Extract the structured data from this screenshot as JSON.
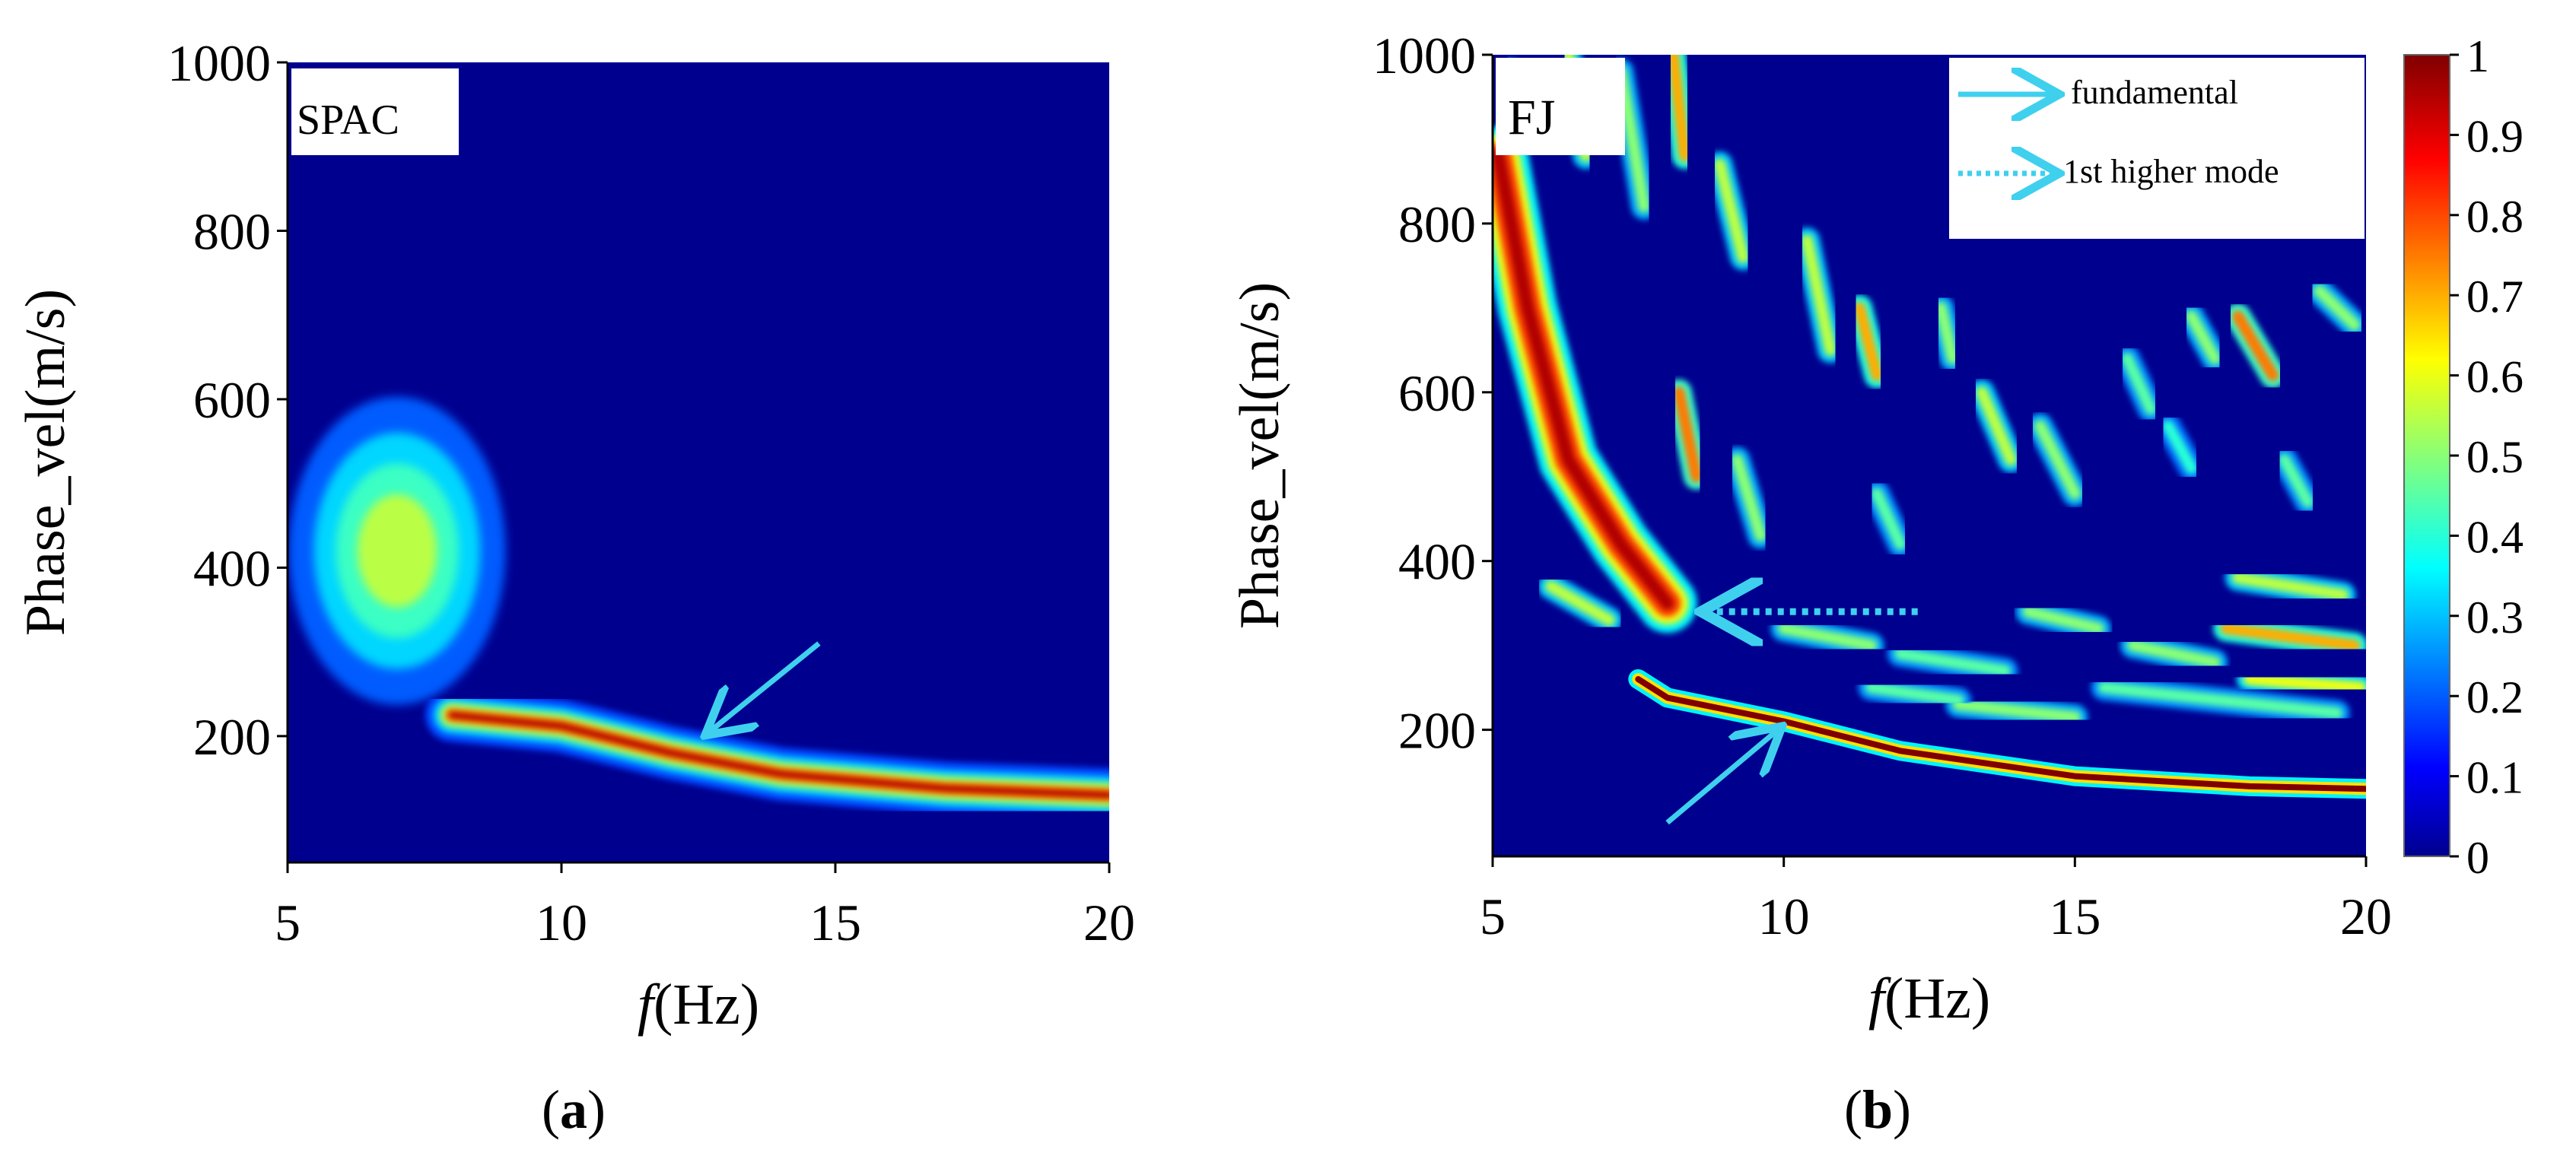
{
  "chart_data": [
    {
      "type": "heatmap",
      "panel_label": "a",
      "method_label": "SPAC",
      "xlabel_italic": "f",
      "xlabel_rest": "(Hz)",
      "ylabel": "Phase_vel(m/s)",
      "xlim": [
        5,
        20
      ],
      "ylim": [
        50,
        1000
      ],
      "x_ticks": [
        5,
        10,
        15,
        20
      ],
      "y_ticks": [
        200,
        400,
        600,
        800,
        1000
      ],
      "colormap": "jet",
      "energy_features": [
        {
          "name": "blob",
          "freq": 7.0,
          "vel": 420,
          "peak": 0.55
        },
        {
          "name": "fundamental_ridge",
          "points": [
            [
              8,
              225
            ],
            [
              10,
              212
            ],
            [
              12,
              180
            ],
            [
              14,
              155
            ],
            [
              17,
              138
            ],
            [
              20,
              130
            ]
          ],
          "peak": 0.95
        },
        {
          "name": "arrow",
          "from": [
            14.7,
            310
          ],
          "to": [
            12.7,
            205
          ],
          "color": "#3fd0ee"
        }
      ]
    },
    {
      "type": "heatmap",
      "panel_label": "b",
      "method_label": "FJ",
      "xlabel_italic": "f",
      "xlabel_rest": "(Hz)",
      "ylabel": "Phase_vel(m/s)",
      "xlim": [
        5,
        20
      ],
      "ylim": [
        50,
        1000
      ],
      "x_ticks": [
        5,
        10,
        15,
        20
      ],
      "y_ticks": [
        200,
        400,
        600,
        800,
        1000
      ],
      "colormap": "jet",
      "legend": [
        {
          "label": "fundamental",
          "style": "solid-arrow"
        },
        {
          "label": "1st higher mode",
          "style": "dotted-arrow"
        }
      ],
      "energy_features": [
        {
          "name": "fundamental_mode",
          "points": [
            [
              7.5,
              260
            ],
            [
              8,
              238
            ],
            [
              10,
              210
            ],
            [
              12,
              175
            ],
            [
              15,
              145
            ],
            [
              18,
              133
            ],
            [
              20,
              130
            ]
          ],
          "peak": 1.0
        },
        {
          "name": "first_higher_mode",
          "points": [
            [
              5.1,
              880
            ],
            [
              5.6,
              700
            ],
            [
              6.3,
              520
            ],
            [
              7.2,
              420
            ],
            [
              8.0,
              350
            ]
          ],
          "peak": 0.95
        },
        {
          "name": "fundamental_arrow",
          "from": [
            8.0,
            90
          ],
          "to": [
            9.9,
            200
          ],
          "color": "#3fd0ee"
        },
        {
          "name": "higher_mode_arrow",
          "from": [
            12.3,
            340
          ],
          "to": [
            8.7,
            340
          ],
          "color": "#3fd0ee"
        }
      ]
    }
  ],
  "colorbar": {
    "ticks": [
      "0",
      "0.1",
      "0.2",
      "0.3",
      "0.4",
      "0.5",
      "0.6",
      "0.7",
      "0.8",
      "0.9",
      "1"
    ],
    "min": 0,
    "max": 1
  },
  "colors": {
    "background": "#00008f",
    "arrow": "#3fd0ee"
  }
}
